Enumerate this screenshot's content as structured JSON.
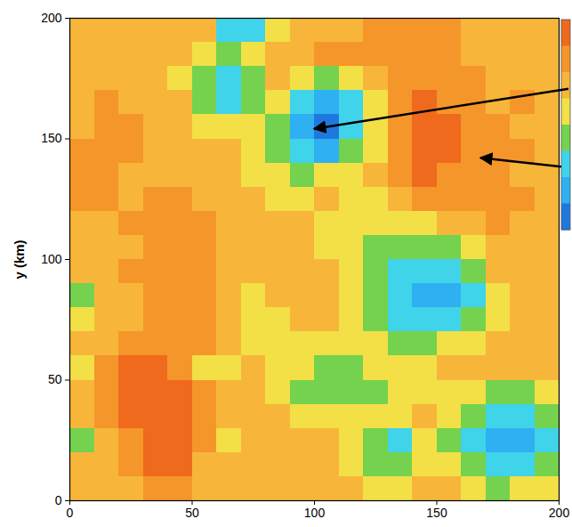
{
  "chart_data": {
    "type": "heatmap",
    "ylabel": "y (km)",
    "xlim": [
      0,
      200
    ],
    "ylim": [
      0,
      200
    ],
    "xticks": [
      0,
      50,
      100,
      150,
      200
    ],
    "yticks": [
      0,
      50,
      100,
      150,
      200
    ],
    "x_edges": [
      0,
      10,
      20,
      30,
      40,
      50,
      60,
      70,
      80,
      90,
      100,
      110,
      120,
      130,
      140,
      150,
      160,
      170,
      180,
      190,
      200
    ],
    "y_edges": [
      200,
      190,
      180,
      170,
      160,
      150,
      140,
      130,
      120,
      110,
      100,
      90,
      80,
      70,
      60,
      50,
      40,
      30,
      20,
      10,
      0
    ],
    "colors": [
      "#ef6a1c",
      "#f5962a",
      "#f7b63a",
      "#f2e046",
      "#74d24e",
      "#3fd4ea",
      "#2fb0f2",
      "#1f78de"
    ],
    "z": [
      [
        2,
        2,
        2,
        2,
        2,
        2,
        5,
        5,
        3,
        2,
        2,
        2,
        1,
        1,
        1,
        1,
        2,
        2,
        2,
        2
      ],
      [
        2,
        2,
        2,
        2,
        2,
        3,
        4,
        3,
        2,
        2,
        1,
        1,
        1,
        1,
        1,
        1,
        2,
        2,
        2,
        2
      ],
      [
        2,
        2,
        2,
        2,
        3,
        4,
        5,
        4,
        2,
        3,
        4,
        3,
        2,
        1,
        1,
        1,
        1,
        2,
        2,
        2
      ],
      [
        2,
        1,
        2,
        2,
        2,
        4,
        5,
        4,
        3,
        5,
        6,
        5,
        3,
        1,
        0,
        1,
        1,
        2,
        1,
        2
      ],
      [
        2,
        1,
        1,
        2,
        2,
        3,
        3,
        3,
        4,
        6,
        7,
        5,
        3,
        1,
        0,
        0,
        1,
        1,
        2,
        2
      ],
      [
        1,
        1,
        1,
        2,
        2,
        2,
        2,
        3,
        4,
        5,
        6,
        4,
        3,
        1,
        0,
        0,
        1,
        1,
        1,
        2
      ],
      [
        1,
        1,
        2,
        2,
        2,
        2,
        2,
        3,
        3,
        4,
        3,
        3,
        2,
        1,
        0,
        1,
        1,
        1,
        2,
        2
      ],
      [
        1,
        1,
        2,
        1,
        1,
        2,
        2,
        2,
        3,
        3,
        2,
        3,
        3,
        2,
        1,
        1,
        1,
        1,
        1,
        2
      ],
      [
        2,
        2,
        1,
        1,
        1,
        1,
        2,
        2,
        2,
        2,
        3,
        3,
        3,
        3,
        3,
        2,
        2,
        1,
        2,
        2
      ],
      [
        2,
        2,
        2,
        1,
        1,
        1,
        2,
        2,
        2,
        2,
        3,
        3,
        4,
        4,
        4,
        4,
        3,
        2,
        2,
        2
      ],
      [
        2,
        2,
        1,
        1,
        1,
        1,
        2,
        2,
        2,
        2,
        2,
        3,
        4,
        5,
        5,
        5,
        4,
        2,
        2,
        2
      ],
      [
        4,
        2,
        2,
        1,
        1,
        1,
        2,
        3,
        2,
        2,
        2,
        3,
        4,
        5,
        6,
        6,
        5,
        3,
        2,
        2
      ],
      [
        3,
        2,
        2,
        1,
        1,
        1,
        2,
        3,
        3,
        2,
        2,
        3,
        4,
        5,
        5,
        5,
        4,
        3,
        2,
        2
      ],
      [
        2,
        2,
        1,
        1,
        1,
        1,
        2,
        3,
        3,
        3,
        3,
        3,
        3,
        4,
        4,
        3,
        3,
        2,
        2,
        2
      ],
      [
        3,
        1,
        0,
        0,
        1,
        3,
        3,
        2,
        3,
        3,
        4,
        4,
        3,
        3,
        3,
        2,
        2,
        2,
        2,
        2
      ],
      [
        2,
        1,
        0,
        0,
        0,
        1,
        2,
        2,
        3,
        4,
        4,
        4,
        4,
        3,
        3,
        3,
        3,
        4,
        4,
        3
      ],
      [
        2,
        1,
        0,
        0,
        0,
        1,
        2,
        2,
        2,
        3,
        3,
        3,
        3,
        3,
        2,
        3,
        4,
        5,
        5,
        4
      ],
      [
        4,
        2,
        1,
        0,
        0,
        1,
        3,
        2,
        2,
        2,
        2,
        3,
        4,
        5,
        3,
        4,
        5,
        6,
        6,
        5
      ],
      [
        2,
        2,
        1,
        0,
        0,
        2,
        2,
        2,
        2,
        2,
        2,
        3,
        4,
        4,
        3,
        3,
        4,
        5,
        5,
        4
      ],
      [
        2,
        2,
        2,
        1,
        1,
        2,
        2,
        2,
        2,
        2,
        2,
        2,
        3,
        3,
        2,
        2,
        3,
        4,
        3,
        3
      ]
    ],
    "arrows": [
      {
        "x": 100,
        "y": 154
      },
      {
        "x": 168,
        "y": 142
      }
    ]
  }
}
